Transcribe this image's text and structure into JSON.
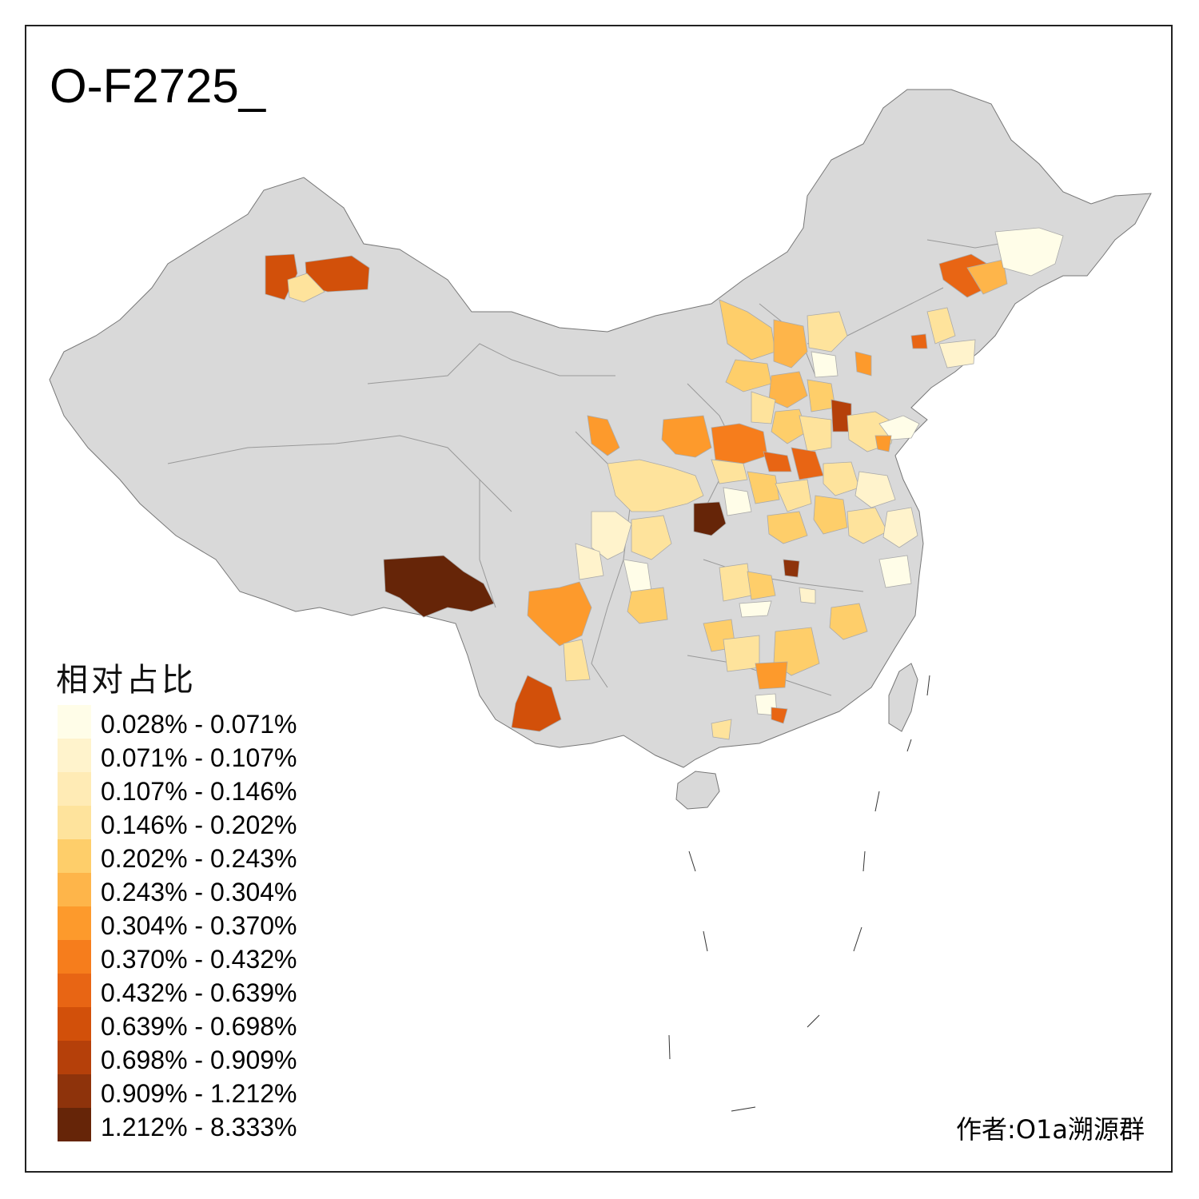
{
  "title": "O-F2725_",
  "legend": {
    "title": "相对占比",
    "items": [
      {
        "label": "0.028% - 0.071%",
        "color": "#fffde8"
      },
      {
        "label": "0.071% - 0.107%",
        "color": "#fff3cc"
      },
      {
        "label": "0.107% - 0.146%",
        "color": "#ffebb5"
      },
      {
        "label": "0.146% - 0.202%",
        "color": "#fee39c"
      },
      {
        "label": "0.202% - 0.243%",
        "color": "#fece6a"
      },
      {
        "label": "0.243% - 0.304%",
        "color": "#feb54a"
      },
      {
        "label": "0.304% - 0.370%",
        "color": "#fd9a2c"
      },
      {
        "label": "0.370% - 0.432%",
        "color": "#f67d1c"
      },
      {
        "label": "0.432% - 0.639%",
        "color": "#e86514"
      },
      {
        "label": "0.639% - 0.698%",
        "color": "#d2500a"
      },
      {
        "label": "0.698% - 0.909%",
        "color": "#b5400a"
      },
      {
        "label": "0.909% - 1.212%",
        "color": "#8e330b"
      },
      {
        "label": "1.212% - 8.333%",
        "color": "#662508"
      }
    ]
  },
  "author": "作者:O1a溯源群",
  "colors": {
    "base": "#d9d9d9",
    "border": "#888888"
  }
}
